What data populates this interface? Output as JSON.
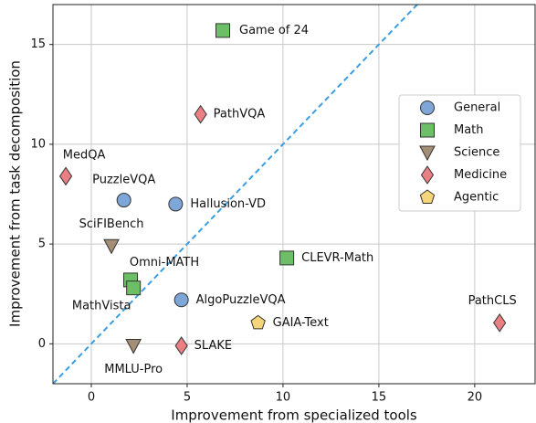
{
  "chart_data": {
    "type": "scatter",
    "xlabel": "Improvement from specialized tools",
    "ylabel": "Improvement from task decomposition",
    "xlim": [
      -2,
      23.15
    ],
    "ylim": [
      -2,
      17
    ],
    "xticks": [
      0,
      5,
      10,
      15,
      20
    ],
    "yticks": [
      0,
      5,
      10,
      15
    ],
    "grid": true,
    "legend": "right",
    "identity_line": {
      "color": "#3a9ee4",
      "style": "dashed"
    },
    "series": [
      {
        "name": "General",
        "color": "#7ea6d8",
        "marker": "circle",
        "x": [
          1.7,
          4.4,
          4.7
        ],
        "y": [
          7.2,
          7.0,
          2.2
        ],
        "labels": [
          "PuzzleVQA",
          "Hallusion-VD",
          "AlgoPuzzleVQA"
        ]
      },
      {
        "name": "Math",
        "color": "#6dbf67",
        "marker": "square",
        "x": [
          6.86,
          10.2,
          2.05,
          2.2
        ],
        "y": [
          15.7,
          4.3,
          3.2,
          2.8
        ],
        "labels": [
          "Game of 24",
          "CLEVR-Math",
          "Omni-MATH",
          "MathVista"
        ]
      },
      {
        "name": "Science",
        "color": "#a58e76",
        "marker": "triangle-down",
        "x": [
          1.05,
          2.2
        ],
        "y": [
          4.9,
          -0.1
        ],
        "labels": [
          "SciFIBench",
          "MMLU-Pro"
        ]
      },
      {
        "name": "Medicine",
        "color": "#ea7f84",
        "marker": "diamond",
        "x": [
          5.7,
          -1.33,
          21.3,
          4.7
        ],
        "y": [
          11.5,
          8.4,
          1.05,
          -0.1
        ],
        "labels": [
          "PathVQA",
          "MedQA",
          "PathCLS",
          "SLAKE"
        ]
      },
      {
        "name": "Agentic",
        "color": "#f5d47a",
        "marker": "pentagon",
        "x": [
          8.7
        ],
        "y": [
          1.05
        ],
        "labels": [
          "GAIA-Text"
        ]
      }
    ]
  }
}
